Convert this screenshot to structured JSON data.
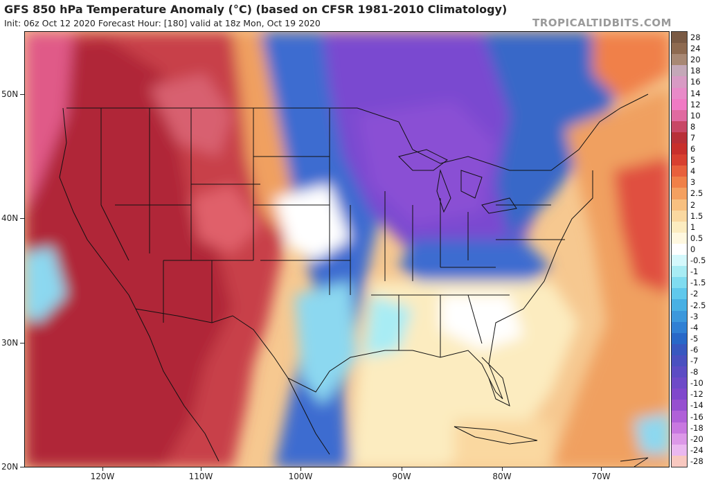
{
  "header": {
    "title": "GFS 850 hPa Temperature Anomaly (°C) (based on CFSR 1981-2010 Climatology)",
    "subtitle": "Init: 06z Oct 12 2020   Forecast Hour: [180]   valid at 18z Mon, Oct 19 2020",
    "source": "TROPICALTIDBITS.COM"
  },
  "axes": {
    "lat_labels": [
      "50N",
      "40N",
      "30N",
      "20N"
    ],
    "lon_labels": [
      "120W",
      "110W",
      "100W",
      "90W",
      "80W",
      "70W"
    ]
  },
  "colorbar": {
    "labels": [
      "28",
      "24",
      "20",
      "18",
      "16",
      "14",
      "12",
      "10",
      "8",
      "7",
      "6",
      "5",
      "4",
      "3",
      "2.5",
      "2",
      "1.5",
      "1",
      "0.5",
      "0",
      "-0.5",
      "-1",
      "-1.5",
      "-2",
      "-2.5",
      "-3",
      "-4",
      "-5",
      "-6",
      "-7",
      "-8",
      "-10",
      "-12",
      "-14",
      "-16",
      "-18",
      "-20",
      "-24",
      "-28"
    ],
    "colors": [
      "#7a5a44",
      "#8e6a50",
      "#a88874",
      "#c4a8b8",
      "#d89ac4",
      "#e88ac8",
      "#f07ac4",
      "#e06aa0",
      "#c84866",
      "#b83038",
      "#c8302c",
      "#d84030",
      "#e8603c",
      "#f08048",
      "#f4a060",
      "#f8c080",
      "#fad8a0",
      "#fcecc0",
      "#fff8e0",
      "#ffffff",
      "#d4f8fc",
      "#a8ecf4",
      "#80dcf0",
      "#60c8ec",
      "#48b0e4",
      "#3c98dc",
      "#3080d4",
      "#2868c8",
      "#3858c0",
      "#4a50c0",
      "#5c4cc4",
      "#6e4ac8",
      "#8048cc",
      "#9650d0",
      "#b060d8",
      "#c878e0",
      "#dc98e8",
      "#eab8f0",
      "#f8c8c0"
    ]
  },
  "map": {
    "colors": {
      "warm_west": "#c8404a",
      "deep_warm": "#b02838",
      "hot_spots": "#e0606a",
      "cool_plains": "#3c6cd0",
      "cold_core": "#7a4ad0",
      "cold_mid": "#5c54c8",
      "neutral_south": "#fcecc0",
      "ocean_warm": "#f0a060",
      "light_blue": "#8cd8f0",
      "borders": "#111111"
    }
  }
}
